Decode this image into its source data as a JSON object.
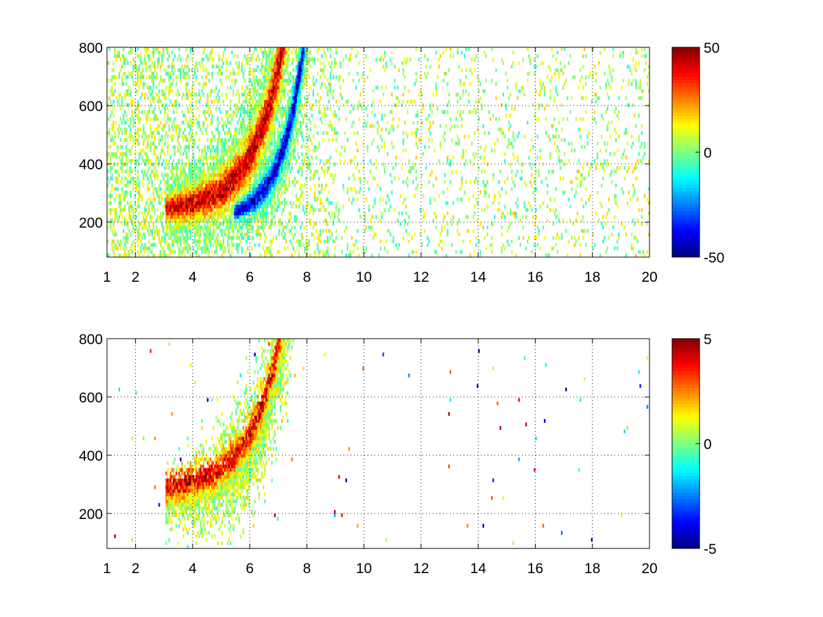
{
  "chart_data": [
    {
      "type": "heatmap",
      "title": "",
      "xlabel": "",
      "ylabel": "",
      "xlim": [
        1,
        20
      ],
      "ylim": [
        80,
        800
      ],
      "grid": true,
      "x_ticks": [
        1,
        2,
        4,
        6,
        8,
        10,
        12,
        14,
        16,
        18,
        20
      ],
      "x_tick_labels": [
        "1",
        "2",
        "4",
        "6",
        "8",
        "10",
        "12",
        "14",
        "16",
        "18",
        "20"
      ],
      "y_ticks": [
        200,
        400,
        600,
        800
      ],
      "y_tick_labels": [
        "200",
        "400",
        "600",
        "800"
      ],
      "colormap": "jet",
      "colorbar": {
        "clim": [
          -50,
          50
        ],
        "ticks": [
          50,
          0,
          -50
        ],
        "tick_labels": [
          "50",
          "0",
          "-50"
        ],
        "placement": "right"
      },
      "features": [
        {
          "shape": "band",
          "x_range": [
            3.0,
            7.2
          ],
          "y_range": [
            230,
            700
          ],
          "value_approx": 40
        },
        {
          "shape": "band",
          "x_range": [
            5.5,
            8.2
          ],
          "y_range": [
            220,
            480
          ],
          "value_approx": -40
        },
        {
          "shape": "scattered_noise",
          "x_range": [
            1,
            20
          ],
          "y_range": [
            80,
            800
          ],
          "value_range": [
            -10,
            15
          ]
        }
      ]
    },
    {
      "type": "heatmap",
      "title": "",
      "xlabel": "",
      "ylabel": "",
      "xlim": [
        1,
        20
      ],
      "ylim": [
        80,
        800
      ],
      "grid": true,
      "x_ticks": [
        1,
        2,
        4,
        6,
        8,
        10,
        12,
        14,
        16,
        18,
        20
      ],
      "x_tick_labels": [
        "1",
        "2",
        "4",
        "6",
        "8",
        "10",
        "12",
        "14",
        "16",
        "18",
        "20"
      ],
      "y_ticks": [
        200,
        400,
        600,
        800
      ],
      "y_tick_labels": [
        "200",
        "400",
        "600",
        "800"
      ],
      "colormap": "jet",
      "colorbar": {
        "clim": [
          -5,
          5
        ],
        "ticks": [
          5,
          0,
          -5
        ],
        "tick_labels": [
          "5",
          "0",
          "-5"
        ],
        "placement": "right"
      },
      "features": [
        {
          "shape": "band",
          "x_range": [
            3.0,
            8.4
          ],
          "y_range": [
            180,
            760
          ],
          "value_approx": 1
        },
        {
          "shape": "band",
          "x_range": [
            3.5,
            8.2
          ],
          "y_range": [
            280,
            600
          ],
          "value_approx": 4
        }
      ]
    }
  ],
  "colors": {
    "jet_stops": [
      "#00008f",
      "#0000ff",
      "#00ffff",
      "#ffff00",
      "#ff0000",
      "#800000"
    ],
    "background": "#ffffff",
    "axis": "#000000"
  }
}
